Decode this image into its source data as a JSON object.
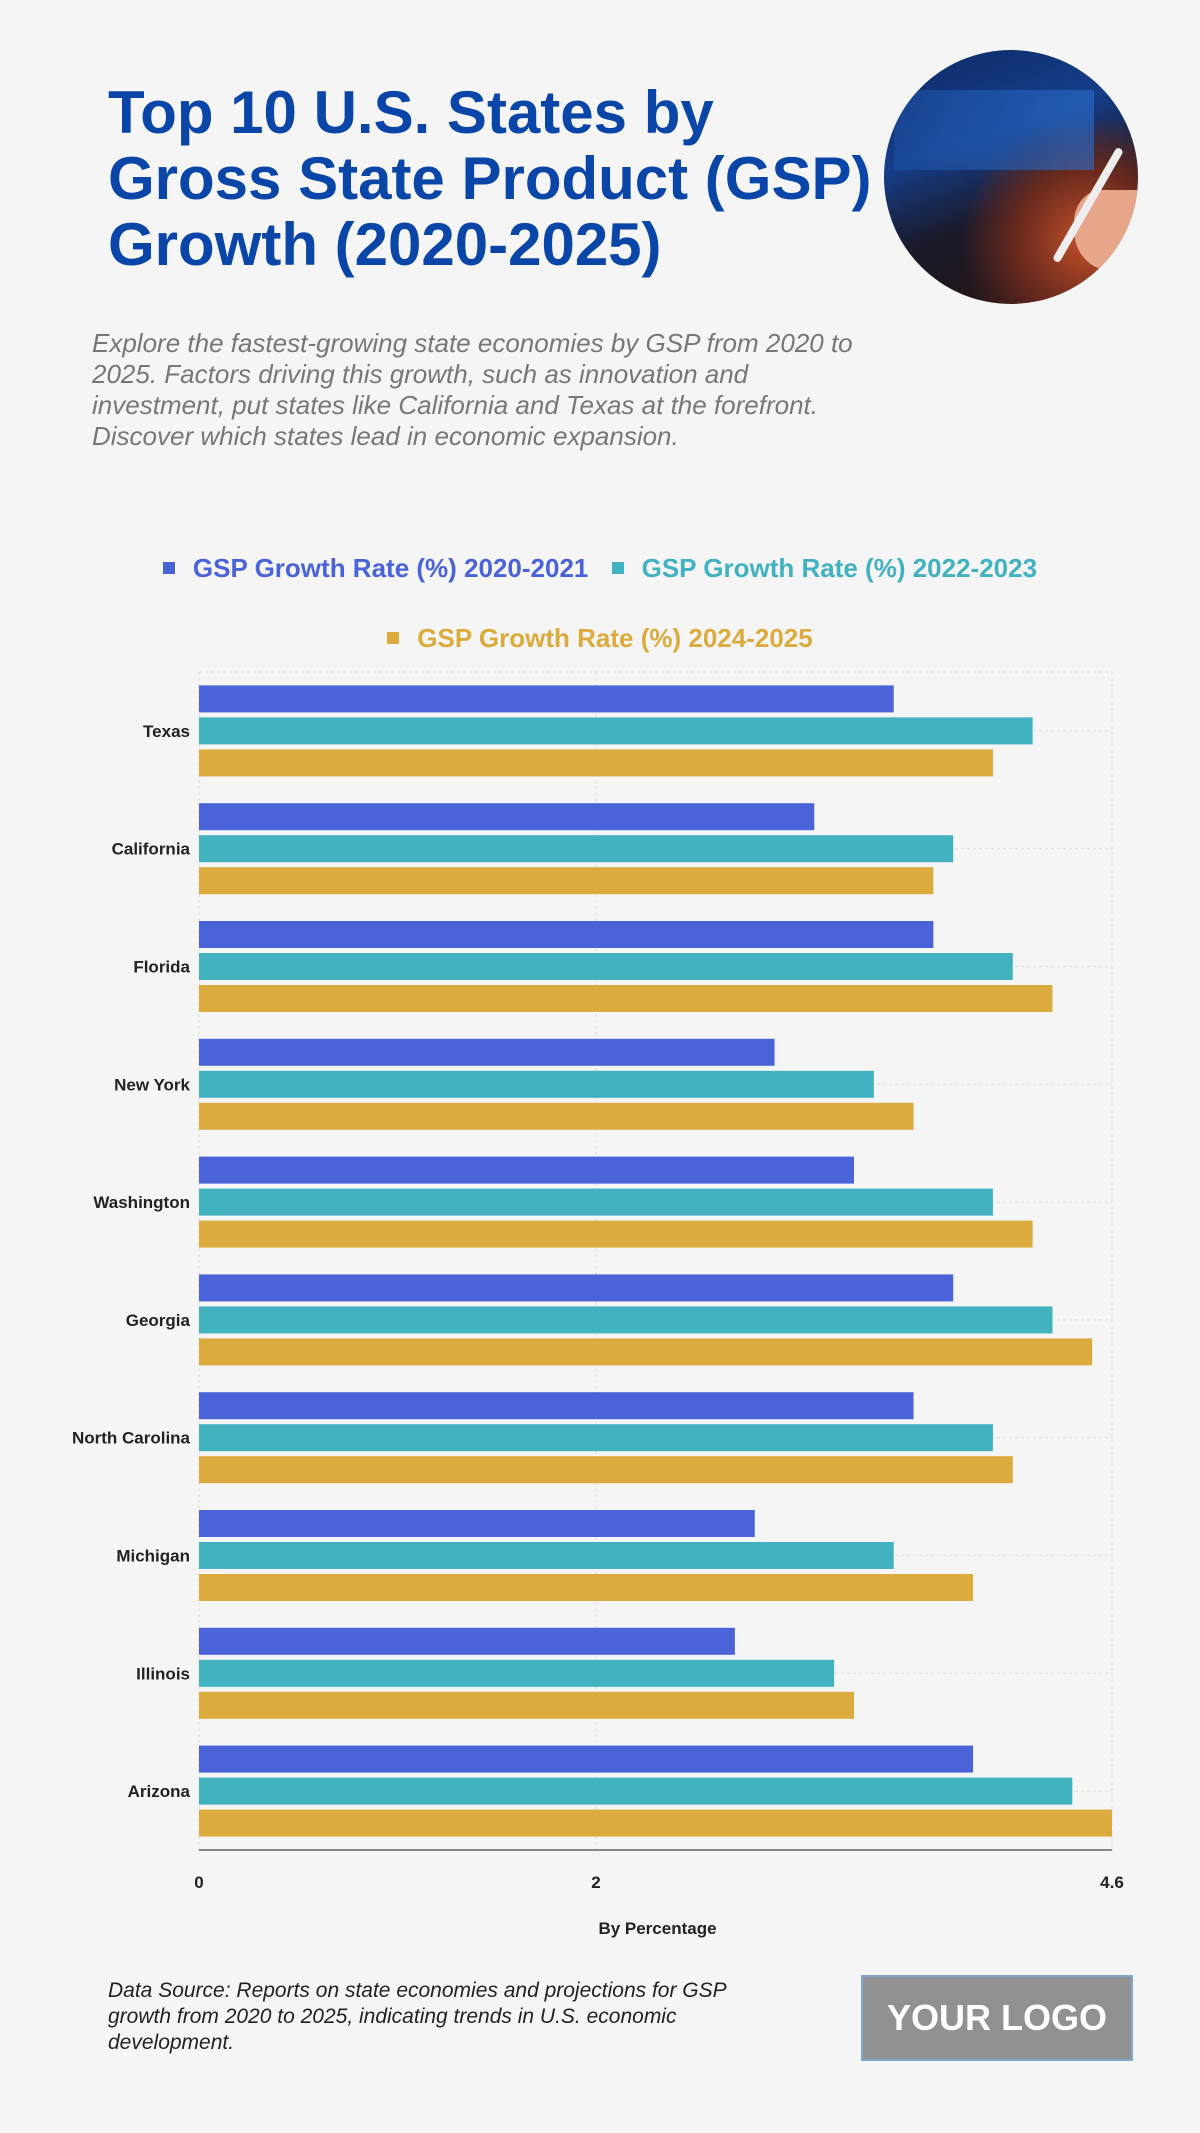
{
  "header": {
    "title": "Top 10 U.S. States by Gross State Product (GSP) Growth (2020-2025)",
    "description": "Explore the fastest-growing state economies by GSP from 2020 to 2025. Factors driving this growth, such as innovation and investment, put states like California and Texas at the forefront. Discover which states lead in economic expansion."
  },
  "footer": {
    "source": "Data Source: Reports on state economies and projections for GSP growth from 2020 to 2025, indicating trends in U.S. economic development.",
    "logo": "YOUR LOGO"
  },
  "chart_data": {
    "type": "bar",
    "orientation": "horizontal",
    "categories": [
      "Texas",
      "California",
      "Florida",
      "New York",
      "Washington",
      "Georgia",
      "North Carolina",
      "Michigan",
      "Illinois",
      "Arizona"
    ],
    "series": [
      {
        "name": "GSP Growth Rate (%) 2020-2021",
        "color": "#4a63d9",
        "values": [
          3.5,
          3.1,
          3.7,
          2.9,
          3.3,
          3.8,
          3.6,
          2.8,
          2.7,
          3.9
        ]
      },
      {
        "name": "GSP Growth Rate (%) 2022-2023",
        "color": "#42b1c0",
        "values": [
          4.2,
          3.8,
          4.1,
          3.4,
          4.0,
          4.3,
          4.0,
          3.5,
          3.2,
          4.4
        ]
      },
      {
        "name": "GSP Growth Rate (%) 2024-2025",
        "color": "#dcab3d",
        "values": [
          4.0,
          3.7,
          4.3,
          3.6,
          4.2,
          4.5,
          4.1,
          3.9,
          3.3,
          4.6
        ]
      }
    ],
    "xlabel": "By Percentage",
    "xlim": [
      0,
      4.6
    ],
    "xticks": [
      "0",
      "2",
      "4.6"
    ],
    "grid": true,
    "legend_position": "top"
  }
}
